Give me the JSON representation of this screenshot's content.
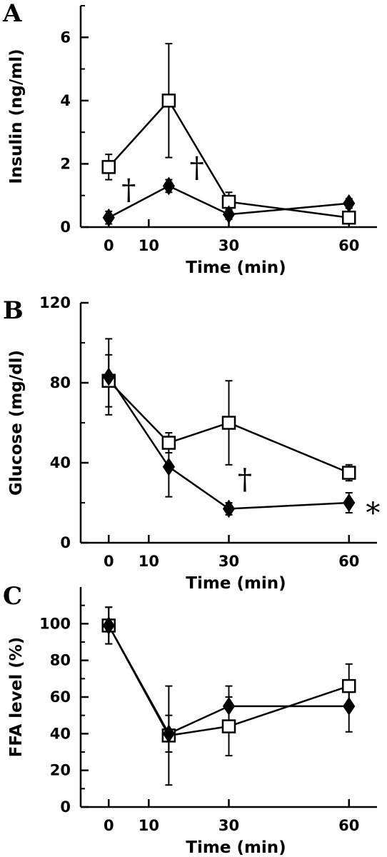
{
  "chart_data": [
    {
      "panel": "A",
      "type": "line",
      "xlabel": "Time (min)",
      "ylabel": "Insulin (ng/ml)",
      "ylim": [
        0,
        7
      ],
      "xlim": [
        -7,
        67
      ],
      "xticks": [
        0,
        10,
        30,
        60
      ],
      "yticks": [
        0,
        2,
        4,
        6
      ],
      "grid": false,
      "series": [
        {
          "marker": "square-open",
          "x": [
            0,
            15,
            30,
            60
          ],
          "y": [
            1.9,
            4.0,
            0.8,
            0.3
          ],
          "err": [
            0.4,
            1.8,
            0.3,
            0.15
          ]
        },
        {
          "marker": "diamond-filled",
          "x": [
            0,
            15,
            30,
            60
          ],
          "y": [
            0.3,
            1.3,
            0.4,
            0.75
          ],
          "err": [
            0.2,
            0.2,
            0.15,
            0.15
          ]
        }
      ],
      "annotations": [
        {
          "text": "†",
          "x": 5,
          "y": 1.2
        },
        {
          "text": "†",
          "x": 22,
          "y": 1.9
        }
      ]
    },
    {
      "panel": "B",
      "type": "line",
      "xlabel": "Time (min)",
      "ylabel": "Glucose (mg/dl)",
      "ylim": [
        0,
        120
      ],
      "xlim": [
        -7,
        67
      ],
      "xticks": [
        0,
        10,
        30,
        60
      ],
      "yticks": [
        0,
        40,
        80,
        120
      ],
      "grid": false,
      "series": [
        {
          "marker": "square-open",
          "x": [
            0,
            15,
            30,
            60
          ],
          "y": [
            81,
            50,
            60,
            35
          ],
          "err": [
            13,
            5,
            21,
            4
          ]
        },
        {
          "marker": "diamond-filled",
          "x": [
            0,
            15,
            30,
            60
          ],
          "y": [
            83,
            38,
            17,
            20
          ],
          "err": [
            19,
            15,
            3,
            5
          ]
        }
      ],
      "annotations": [
        {
          "text": "†",
          "x": 34,
          "y": 32
        },
        {
          "text": "*",
          "x": 66,
          "y": 15
        }
      ]
    },
    {
      "panel": "C",
      "type": "line",
      "xlabel": "Time (min)",
      "ylabel": "FFA level (%)",
      "ylim": [
        0,
        120
      ],
      "xlim": [
        -7,
        67
      ],
      "xticks": [
        0,
        10,
        30,
        60
      ],
      "yticks": [
        0,
        20,
        40,
        60,
        80,
        100
      ],
      "grid": false,
      "series": [
        {
          "marker": "square-open",
          "x": [
            0,
            15,
            30,
            60
          ],
          "y": [
            99,
            39,
            44,
            66
          ],
          "err": [
            10,
            27,
            16,
            12
          ]
        },
        {
          "marker": "diamond-filled",
          "x": [
            0,
            15,
            30,
            60
          ],
          "y": [
            99,
            40,
            55,
            55
          ],
          "err": [
            10,
            10,
            11,
            14
          ]
        }
      ],
      "annotations": []
    }
  ]
}
